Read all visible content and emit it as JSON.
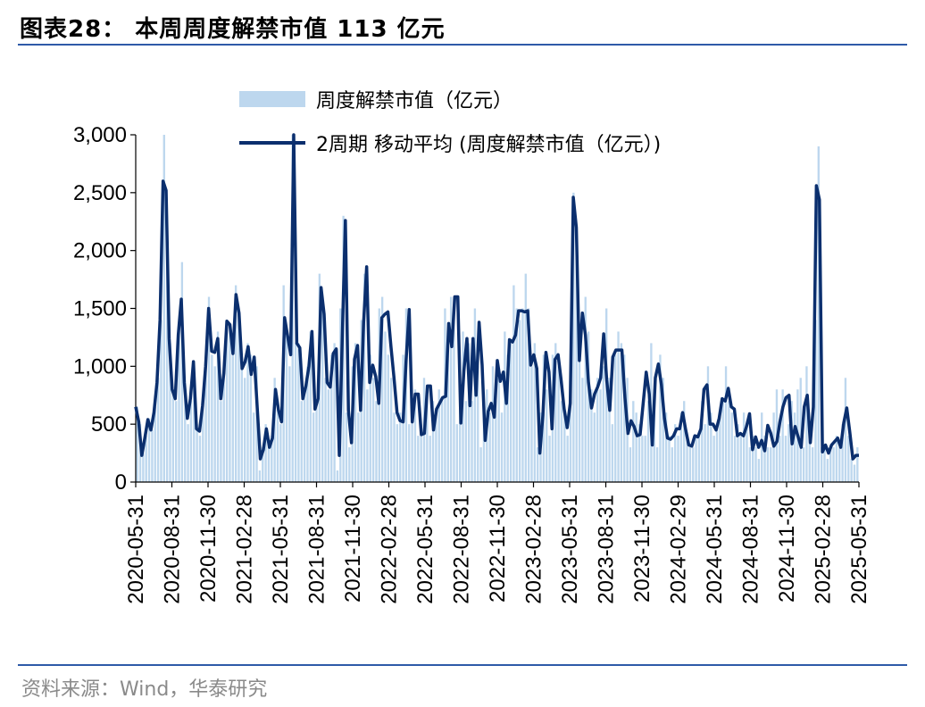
{
  "header": {
    "title": "图表28：   本周周度解禁市值 113 亿元"
  },
  "footer": {
    "source": "资料来源：Wind，华泰研究"
  },
  "colors": {
    "bar": "#bdd7ee",
    "line": "#0b2f6e",
    "rule": "#2e5aa8"
  },
  "chart_data": {
    "type": "bar+line",
    "title": "",
    "xlabel": "",
    "ylabel": "",
    "ylim": [
      0,
      3000
    ],
    "yticks": [
      0,
      500,
      1000,
      1500,
      2000,
      2500,
      3000
    ],
    "ytick_labels": [
      "0",
      "500",
      "1,000",
      "1,500",
      "2,000",
      "2,500",
      "3,000"
    ],
    "xtick_labels": [
      "2020-05-31",
      "2020-08-31",
      "2020-11-30",
      "2021-02-28",
      "2021-05-31",
      "2021-08-31",
      "2021-11-30",
      "2022-02-28",
      "2022-05-31",
      "2022-08-31",
      "2022-11-30",
      "2023-02-28",
      "2023-05-31",
      "2023-08-31",
      "2023-11-30",
      "2024-02-29",
      "2024-05-31",
      "2024-08-31",
      "2024-11-30",
      "2025-02-28",
      "2025-05-31"
    ],
    "legend": {
      "placement": "top"
    },
    "series": [
      {
        "name": "周度解禁市值（亿元）",
        "type": "bar",
        "values": [
          650,
          500,
          250,
          400,
          550,
          450,
          650,
          900,
          1400,
          3000,
          2200,
          1200,
          800,
          700,
          1300,
          1900,
          800,
          500,
          700,
          1000,
          500,
          400,
          700,
          1000,
          1600,
          1100,
          1000,
          1300,
          700,
          1000,
          1400,
          1350,
          1100,
          1700,
          1500,
          1100,
          900,
          1200,
          1100,
          600,
          1000,
          100,
          300,
          500,
          300,
          400,
          900,
          700,
          500,
          1700,
          1300,
          1000,
          3000,
          1200,
          1200,
          700,
          800,
          1000,
          1300,
          600,
          700,
          1800,
          1500,
          900,
          800,
          1100,
          1200,
          100,
          1500,
          2300,
          600,
          300,
          1000,
          1200,
          600,
          1400,
          1800,
          800,
          1100,
          900,
          700,
          1500,
          1600,
          1300,
          1100,
          900,
          600,
          500,
          600,
          1100,
          1500,
          500,
          700,
          800,
          400,
          500,
          900,
          800,
          400,
          700,
          600,
          800,
          700,
          1500,
          1200,
          1600,
          1600,
          500,
          1000,
          1300,
          700,
          1200,
          700,
          1500,
          1000,
          300,
          700,
          800,
          600,
          1000,
          700,
          900,
          600,
          1300,
          1100,
          1200,
          1700,
          1500,
          1400,
          1500,
          1800,
          1500,
          1000,
          1200,
          300,
          600,
          1100,
          800,
          400,
          1100,
          1200,
          1000,
          700,
          600,
          400,
          700,
          2500,
          2000,
          1300,
          900,
          1600,
          1300,
          800,
          600,
          900,
          800,
          1000,
          1500,
          900,
          500,
          1100,
          1300,
          1200,
          1100,
          900,
          300,
          700,
          600,
          500,
          400,
          400,
          700,
          1200,
          800,
          300,
          1100,
          900,
          600,
          400,
          300,
          500,
          400,
          600,
          700,
          400,
          300,
          300,
          400,
          400,
          700,
          500,
          1000,
          600,
          400,
          500,
          600,
          700,
          1000,
          700,
          600,
          400,
          500,
          400,
          600,
          500,
          300,
          400,
          300,
          200,
          600,
          400,
          300,
          300,
          600,
          800,
          400,
          800,
          400,
          500,
          700,
          600,
          800,
          900,
          300,
          1000,
          400,
          300,
          1400,
          2900,
          300,
          300,
          200,
          300,
          300,
          400,
          300,
          500,
          900,
          400,
          200,
          150,
          300
        ]
      },
      {
        "name": "2周期 移动平均 (周度解禁市值（亿元）)",
        "type": "line",
        "values": [
          650,
          520,
          230,
          380,
          540,
          450,
          600,
          860,
          1400,
          2600,
          2520,
          1240,
          800,
          720,
          1270,
          1580,
          860,
          550,
          720,
          1040,
          460,
          440,
          660,
          1000,
          1500,
          1130,
          1120,
          1240,
          720,
          940,
          1390,
          1360,
          1110,
          1620,
          1460,
          980,
          1040,
          1170,
          930,
          1080,
          640,
          200,
          280,
          460,
          300,
          380,
          800,
          620,
          520,
          1420,
          1260,
          1100,
          3000,
          1200,
          1160,
          720,
          830,
          1000,
          1300,
          630,
          720,
          1680,
          1450,
          860,
          820,
          1110,
          1150,
          230,
          1280,
          2260,
          620,
          340,
          1060,
          1180,
          620,
          1380,
          1860,
          860,
          1010,
          910,
          680,
          1420,
          1450,
          1470,
          1170,
          900,
          600,
          530,
          520,
          1060,
          1490,
          520,
          760,
          760,
          410,
          420,
          830,
          830,
          450,
          630,
          680,
          730,
          740,
          1370,
          1170,
          1600,
          1600,
          510,
          960,
          1240,
          660,
          1240,
          750,
          1380,
          1010,
          360,
          610,
          680,
          560,
          1050,
          870,
          950,
          680,
          1230,
          1210,
          1270,
          1480,
          1480,
          1470,
          1480,
          1010,
          1100,
          980,
          250,
          580,
          1120,
          950,
          460,
          1060,
          1100,
          880,
          630,
          470,
          680,
          2460,
          2200,
          1050,
          1460,
          1270,
          860,
          640,
          760,
          820,
          900,
          1280,
          880,
          620,
          1080,
          1140,
          1140,
          1140,
          730,
          420,
          530,
          480,
          400,
          410,
          680,
          950,
          760,
          320,
          900,
          1020,
          840,
          550,
          380,
          370,
          400,
          460,
          460,
          600,
          450,
          320,
          310,
          400,
          390,
          460,
          800,
          840,
          500,
          500,
          450,
          550,
          720,
          700,
          810,
          650,
          630,
          400,
          420,
          400,
          480,
          590,
          280,
          390,
          300,
          360,
          270,
          490,
          420,
          310,
          350,
          520,
          650,
          730,
          750,
          330,
          480,
          390,
          300,
          650,
          750,
          340,
          650,
          2560,
          2440,
          260,
          320,
          250,
          320,
          350,
          380,
          300,
          510,
          640,
          430,
          200,
          230,
          230
        ]
      }
    ]
  }
}
